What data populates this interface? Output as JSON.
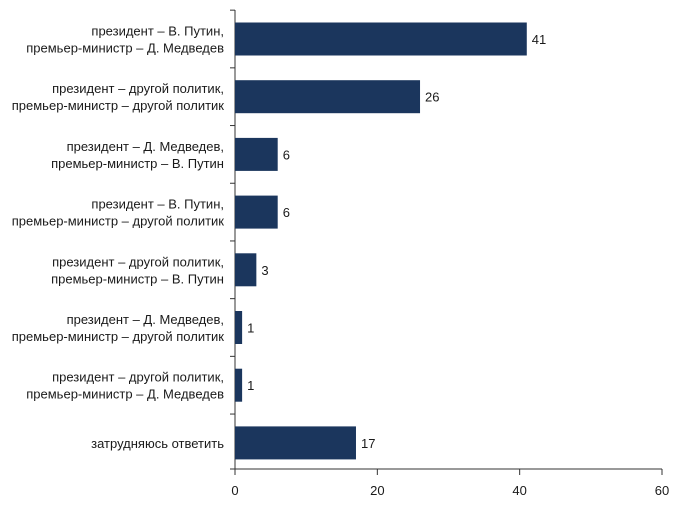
{
  "chart_data": {
    "type": "bar",
    "orientation": "horizontal",
    "categories": [
      [
        "президент – В. Путин,",
        "премьер-министр – Д. Медведев"
      ],
      [
        "президент – другой политик,",
        "премьер-министр – другой политик"
      ],
      [
        "президент – Д. Медведев,",
        "премьер-министр – В. Путин"
      ],
      [
        "президент – В. Путин,",
        "премьер-министр – другой политик"
      ],
      [
        "президент – другой политик,",
        "премьер-министр – В. Путин"
      ],
      [
        "президент – Д. Медведев,",
        "премьер-министр – другой политик"
      ],
      [
        "президент – другой политик,",
        "премьер-министр – Д. Медведев"
      ],
      [
        "затрудняюсь ответить"
      ]
    ],
    "values": [
      41,
      26,
      6,
      6,
      3,
      1,
      1,
      17
    ],
    "value_labels": [
      "41",
      "26",
      "6",
      "6",
      "3",
      "1",
      "1",
      "17"
    ],
    "xlim": [
      0,
      60
    ],
    "xticks": [
      0,
      20,
      40,
      60
    ],
    "xtick_labels": [
      "0",
      "20",
      "40",
      "60"
    ],
    "grid": false,
    "colors": {
      "bar": "#1b365d",
      "axis": "#333333"
    }
  }
}
